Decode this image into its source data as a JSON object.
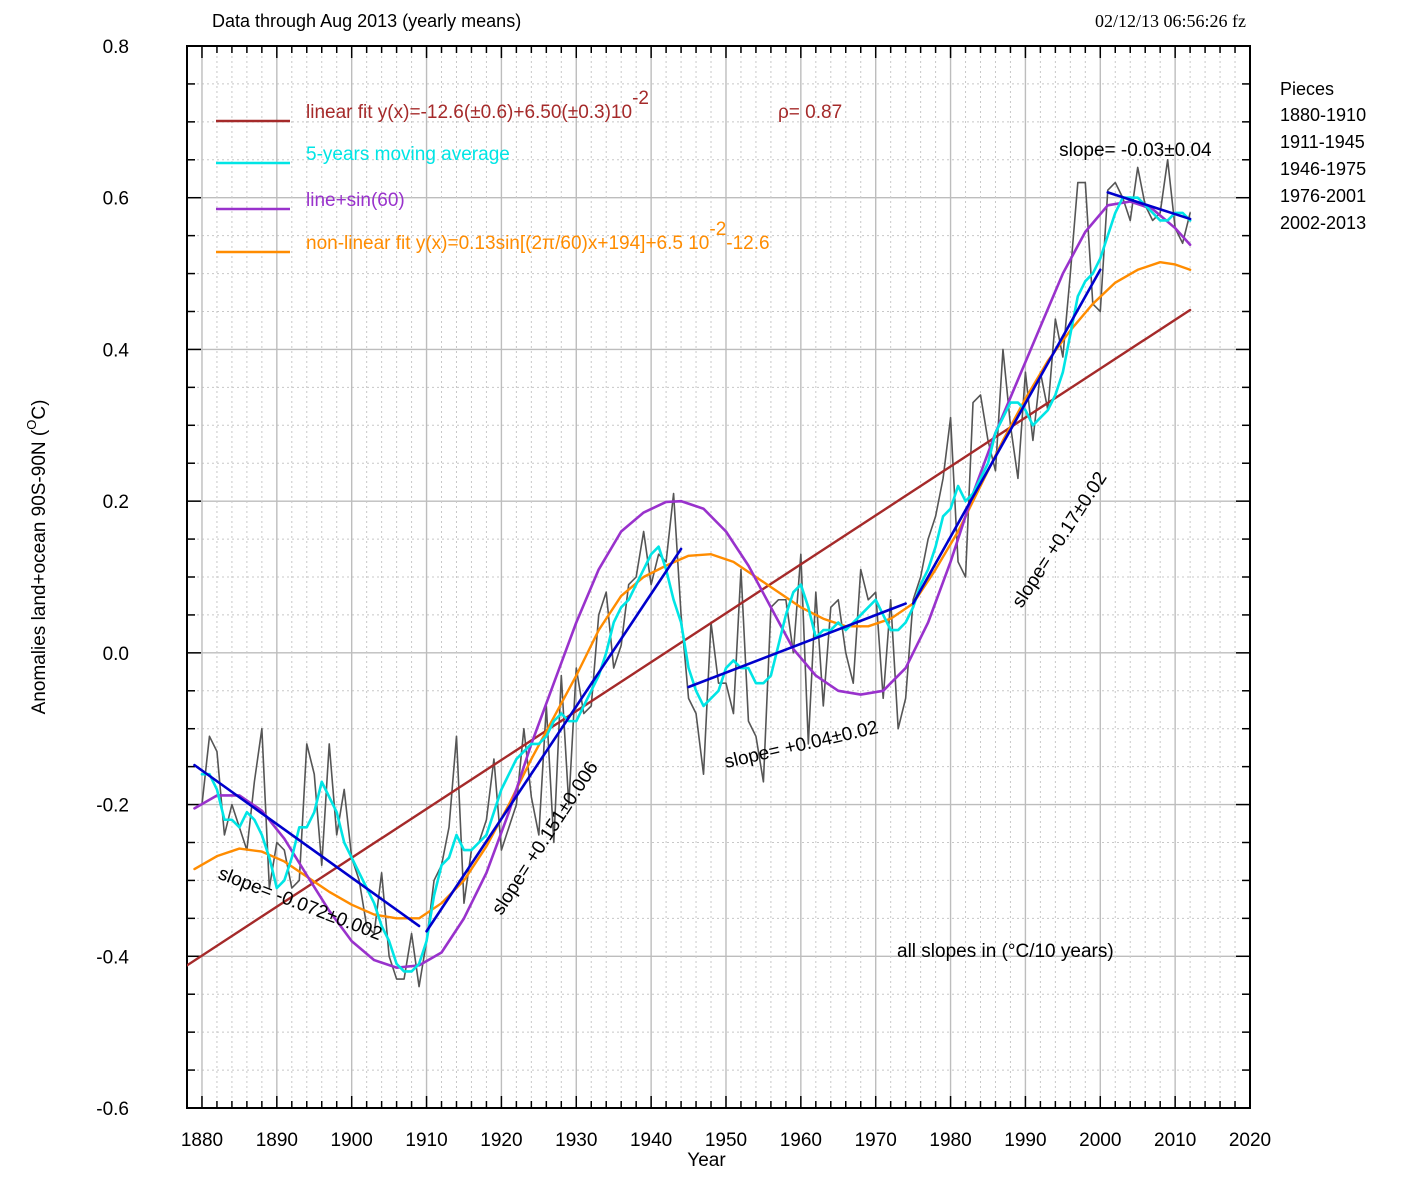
{
  "header": {
    "subtitle": "Data through Aug 2013 (yearly means)",
    "timestamp": "02/12/13  06:56:26 fz"
  },
  "chart_data": {
    "type": "line",
    "xlabel": "Year",
    "ylabel_main": "Anomalies land+ocean 90S-90N (",
    "ylabel_sup": "O",
    "ylabel_end": "C)",
    "xlim": [
      1878,
      2020
    ],
    "ylim": [
      -0.6,
      0.8
    ],
    "x_ticks": [
      1880,
      1890,
      1900,
      1910,
      1920,
      1930,
      1940,
      1950,
      1960,
      1970,
      1980,
      1990,
      2000,
      2010,
      2020
    ],
    "y_ticks": [
      -0.6,
      -0.4,
      -0.2,
      0.0,
      0.2,
      0.4,
      0.6,
      0.8
    ],
    "y_tick_labels": [
      "-0.6",
      "-0.4",
      "-0.2",
      "0.0",
      "0.2",
      "0.4",
      "0.6",
      "0.8"
    ],
    "grid": true,
    "colors": {
      "annual": "#555555",
      "moving_average": "#00e5e5",
      "linear_fit": "#a52a2a",
      "sine": "#9932cc",
      "nonlinear": "#ff8c00",
      "piece_fit": "#0000cc",
      "grid_major": "#bdbdbd",
      "grid_minor": "#c8c8c8"
    },
    "legend": [
      {
        "key": "linear",
        "color": "#a52a2a",
        "text": "linear fit y(x)=-12.6(±0.6)+6.50(±0.3)10",
        "sup": "-2",
        "extra": "ρ= 0.87"
      },
      {
        "key": "ma",
        "color": "#00e5e5",
        "text": "5-years moving average",
        "sup": "",
        "extra": ""
      },
      {
        "key": "sine",
        "color": "#9932cc",
        "text": "line+sin(60)",
        "sup": "",
        "extra": ""
      },
      {
        "key": "nonlinear",
        "color": "#ff8c00",
        "text": "non-linear fit y(x)=0.13sin[(2π/60)x+194]+6.5 10",
        "sup": "-2",
        "extra": "-12.6"
      }
    ],
    "pieces_title": "Pieces",
    "pieces": [
      "1880-1910",
      "1911-1945",
      "1946-1975",
      "1976-2001",
      "2002-2013"
    ],
    "slopes": [
      {
        "text": "slope= -0.072±0.002",
        "x": 1882,
        "y": -0.297,
        "angle": 21
      },
      {
        "text": "slope= +0.151±0.006",
        "x": 1920,
        "y": -0.347,
        "angle": -57
      },
      {
        "text": "slope= +0.04±0.02",
        "x": 1950,
        "y": -0.152,
        "angle": -13
      },
      {
        "text": "slope= +0.17±0.02",
        "x": 1989.5,
        "y": 0.058,
        "angle": -57
      },
      {
        "text": "slope= -0.03±0.04",
        "x": 1994.5,
        "y": 0.655,
        "angle": 0
      }
    ],
    "slopes_note": "all slopes in (°C/10 years)",
    "annual": {
      "years": [
        1880,
        1881,
        1882,
        1883,
        1884,
        1885,
        1886,
        1887,
        1888,
        1889,
        1890,
        1891,
        1892,
        1893,
        1894,
        1895,
        1896,
        1897,
        1898,
        1899,
        1900,
        1901,
        1902,
        1903,
        1904,
        1905,
        1906,
        1907,
        1908,
        1909,
        1910,
        1911,
        1912,
        1913,
        1914,
        1915,
        1916,
        1917,
        1918,
        1919,
        1920,
        1921,
        1922,
        1923,
        1924,
        1925,
        1926,
        1927,
        1928,
        1929,
        1930,
        1931,
        1932,
        1933,
        1934,
        1935,
        1936,
        1937,
        1938,
        1939,
        1940,
        1941,
        1942,
        1943,
        1944,
        1945,
        1946,
        1947,
        1948,
        1949,
        1950,
        1951,
        1952,
        1953,
        1954,
        1955,
        1956,
        1957,
        1958,
        1959,
        1960,
        1961,
        1962,
        1963,
        1964,
        1965,
        1966,
        1967,
        1968,
        1969,
        1970,
        1971,
        1972,
        1973,
        1974,
        1975,
        1976,
        1977,
        1978,
        1979,
        1980,
        1981,
        1982,
        1983,
        1984,
        1985,
        1986,
        1987,
        1988,
        1989,
        1990,
        1991,
        1992,
        1993,
        1994,
        1995,
        1996,
        1997,
        1998,
        1999,
        2000,
        2001,
        2002,
        2003,
        2004,
        2005,
        2006,
        2007,
        2008,
        2009,
        2010,
        2011,
        2012
      ],
      "values": [
        -0.2,
        -0.11,
        -0.13,
        -0.24,
        -0.2,
        -0.23,
        -0.26,
        -0.17,
        -0.1,
        -0.31,
        -0.25,
        -0.26,
        -0.31,
        -0.3,
        -0.12,
        -0.16,
        -0.28,
        -0.12,
        -0.24,
        -0.18,
        -0.27,
        -0.3,
        -0.36,
        -0.37,
        -0.29,
        -0.4,
        -0.43,
        -0.43,
        -0.37,
        -0.44,
        -0.38,
        -0.3,
        -0.28,
        -0.23,
        -0.11,
        -0.33,
        -0.26,
        -0.25,
        -0.22,
        -0.14,
        -0.26,
        -0.23,
        -0.2,
        -0.1,
        -0.19,
        -0.24,
        -0.07,
        -0.25,
        -0.03,
        -0.2,
        -0.02,
        -0.08,
        -0.07,
        0.05,
        0.08,
        -0.02,
        0.01,
        0.09,
        0.1,
        0.16,
        0.09,
        0.13,
        0.12,
        0.21,
        0.05,
        -0.06,
        -0.08,
        -0.16,
        0.04,
        -0.04,
        -0.04,
        -0.08,
        0.11,
        -0.09,
        -0.11,
        -0.17,
        0.06,
        0.07,
        0.07,
        0.0,
        0.13,
        -0.12,
        0.08,
        -0.07,
        0.06,
        0.07,
        0.0,
        -0.04,
        0.11,
        0.07,
        0.08,
        -0.06,
        0.07,
        -0.1,
        -0.06,
        0.07,
        0.1,
        0.15,
        0.18,
        0.23,
        0.31,
        0.12,
        0.1,
        0.33,
        0.34,
        0.28,
        0.24,
        0.4,
        0.3,
        0.23,
        0.37,
        0.28,
        0.37,
        0.32,
        0.44,
        0.39,
        0.5,
        0.62,
        0.62,
        0.46,
        0.45,
        0.61,
        0.62,
        0.6,
        0.57,
        0.64,
        0.59,
        0.57,
        0.58,
        0.65,
        0.56,
        0.54,
        0.58
      ]
    },
    "moving_average": {
      "years": [
        1880,
        1881,
        1882,
        1883,
        1884,
        1885,
        1886,
        1887,
        1888,
        1889,
        1890,
        1891,
        1892,
        1893,
        1894,
        1895,
        1896,
        1897,
        1898,
        1899,
        1900,
        1901,
        1902,
        1903,
        1904,
        1905,
        1906,
        1907,
        1908,
        1909,
        1910,
        1911,
        1912,
        1913,
        1914,
        1915,
        1916,
        1917,
        1918,
        1919,
        1920,
        1921,
        1922,
        1923,
        1924,
        1925,
        1926,
        1927,
        1928,
        1929,
        1930,
        1931,
        1932,
        1933,
        1934,
        1935,
        1936,
        1937,
        1938,
        1939,
        1940,
        1941,
        1942,
        1943,
        1944,
        1945,
        1946,
        1947,
        1948,
        1949,
        1950,
        1951,
        1952,
        1953,
        1954,
        1955,
        1956,
        1957,
        1958,
        1959,
        1960,
        1961,
        1962,
        1963,
        1964,
        1965,
        1966,
        1967,
        1968,
        1969,
        1970,
        1971,
        1972,
        1973,
        1974,
        1975,
        1976,
        1977,
        1978,
        1979,
        1980,
        1981,
        1982,
        1983,
        1984,
        1985,
        1986,
        1987,
        1988,
        1989,
        1990,
        1991,
        1992,
        1993,
        1994,
        1995,
        1996,
        1997,
        1998,
        1999,
        2000,
        2001,
        2002,
        2003,
        2004,
        2005,
        2006,
        2007,
        2008,
        2009,
        2010,
        2011,
        2012
      ],
      "values": [
        -0.16,
        -0.16,
        -0.18,
        -0.22,
        -0.22,
        -0.23,
        -0.21,
        -0.22,
        -0.24,
        -0.27,
        -0.31,
        -0.3,
        -0.27,
        -0.23,
        -0.23,
        -0.21,
        -0.17,
        -0.19,
        -0.21,
        -0.25,
        -0.27,
        -0.29,
        -0.31,
        -0.33,
        -0.36,
        -0.38,
        -0.41,
        -0.42,
        -0.42,
        -0.41,
        -0.38,
        -0.32,
        -0.28,
        -0.27,
        -0.24,
        -0.26,
        -0.26,
        -0.25,
        -0.24,
        -0.21,
        -0.18,
        -0.16,
        -0.14,
        -0.13,
        -0.12,
        -0.12,
        -0.11,
        -0.09,
        -0.08,
        -0.09,
        -0.09,
        -0.07,
        -0.05,
        -0.03,
        0.0,
        0.04,
        0.06,
        0.07,
        0.09,
        0.11,
        0.13,
        0.14,
        0.11,
        0.07,
        0.04,
        -0.02,
        -0.05,
        -0.07,
        -0.06,
        -0.05,
        -0.02,
        -0.01,
        -0.02,
        -0.02,
        -0.04,
        -0.04,
        -0.03,
        0.01,
        0.05,
        0.08,
        0.09,
        0.06,
        0.02,
        0.03,
        0.03,
        0.04,
        0.03,
        0.04,
        0.05,
        0.06,
        0.07,
        0.05,
        0.03,
        0.03,
        0.04,
        0.06,
        0.09,
        0.11,
        0.14,
        0.18,
        0.19,
        0.22,
        0.2,
        0.21,
        0.23,
        0.25,
        0.29,
        0.31,
        0.33,
        0.33,
        0.32,
        0.3,
        0.31,
        0.32,
        0.34,
        0.37,
        0.42,
        0.47,
        0.49,
        0.5,
        0.52,
        0.55,
        0.58,
        0.6,
        0.6,
        0.6,
        0.59,
        0.58,
        0.57,
        0.57,
        0.58,
        0.58,
        0.57
      ]
    },
    "linear_fit": {
      "years": [
        1878,
        2012
      ],
      "values": [
        -0.412,
        0.452
      ]
    },
    "sine_fit": {
      "years": [
        1879,
        1882,
        1885,
        1888,
        1891,
        1894,
        1897,
        1900,
        1903,
        1906,
        1909,
        1912,
        1915,
        1918,
        1921,
        1924,
        1927,
        1930,
        1933,
        1936,
        1939,
        1942,
        1944,
        1947,
        1950,
        1953,
        1956,
        1959,
        1962,
        1965,
        1968,
        1971,
        1974,
        1977,
        1980,
        1983,
        1986,
        1989,
        1992,
        1995,
        1998,
        2001,
        2004,
        2007,
        2010,
        2012
      ],
      "values": [
        -0.205,
        -0.188,
        -0.188,
        -0.208,
        -0.245,
        -0.293,
        -0.34,
        -0.38,
        -0.405,
        -0.415,
        -0.412,
        -0.395,
        -0.35,
        -0.29,
        -0.21,
        -0.12,
        -0.04,
        0.04,
        0.11,
        0.16,
        0.185,
        0.199,
        0.2,
        0.19,
        0.16,
        0.115,
        0.06,
        0.005,
        -0.03,
        -0.05,
        -0.055,
        -0.05,
        -0.02,
        0.04,
        0.12,
        0.21,
        0.29,
        0.36,
        0.43,
        0.5,
        0.555,
        0.59,
        0.595,
        0.585,
        0.56,
        0.538
      ]
    },
    "nonlinear_fit": {
      "years": [
        1879,
        1882,
        1885,
        1888,
        1891,
        1894,
        1897,
        1900,
        1903,
        1906,
        1909,
        1912,
        1915,
        1918,
        1921,
        1924,
        1927,
        1930,
        1933,
        1936,
        1939,
        1942,
        1945,
        1948,
        1951,
        1954,
        1957,
        1960,
        1963,
        1966,
        1969,
        1972,
        1975,
        1978,
        1981,
        1984,
        1987,
        1990,
        1993,
        1996,
        1999,
        2002,
        2005,
        2008,
        2010,
        2012
      ],
      "values": [
        -0.285,
        -0.268,
        -0.258,
        -0.262,
        -0.275,
        -0.295,
        -0.315,
        -0.332,
        -0.345,
        -0.35,
        -0.35,
        -0.33,
        -0.3,
        -0.255,
        -0.2,
        -0.14,
        -0.085,
        -0.03,
        0.03,
        0.075,
        0.1,
        0.115,
        0.128,
        0.13,
        0.12,
        0.1,
        0.08,
        0.06,
        0.045,
        0.035,
        0.035,
        0.045,
        0.065,
        0.11,
        0.16,
        0.22,
        0.28,
        0.335,
        0.385,
        0.425,
        0.46,
        0.488,
        0.505,
        0.515,
        0.512,
        0.505
      ]
    },
    "piece_fits": [
      {
        "years": [
          1879,
          1909
        ],
        "values": [
          -0.148,
          -0.36
        ]
      },
      {
        "years": [
          1910,
          1944
        ],
        "values": [
          -0.367,
          0.137
        ]
      },
      {
        "years": [
          1945,
          1974
        ],
        "values": [
          -0.045,
          0.065
        ]
      },
      {
        "years": [
          1975,
          2000
        ],
        "values": [
          0.065,
          0.505
        ]
      },
      {
        "years": [
          2001,
          2012
        ],
        "values": [
          0.607,
          0.572
        ]
      }
    ]
  }
}
